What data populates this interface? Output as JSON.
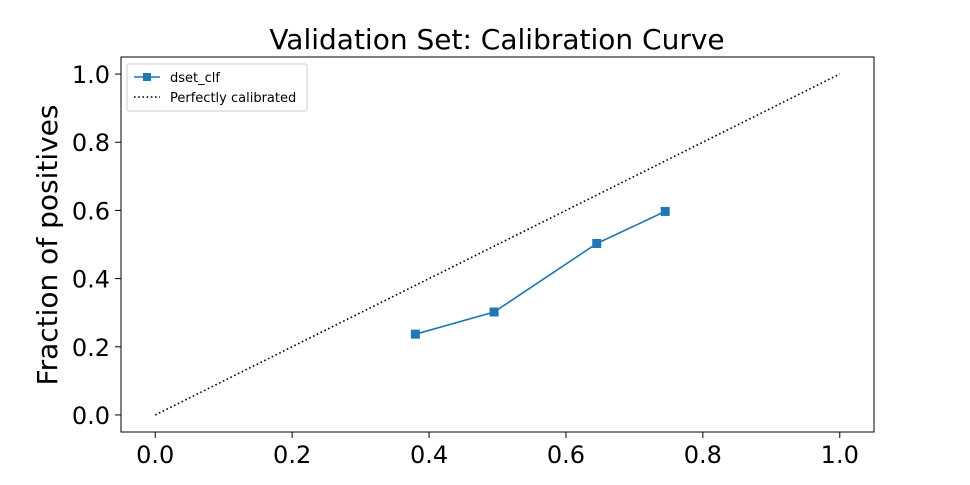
{
  "chart_data": {
    "type": "line",
    "title": "Validation Set: Calibration Curve",
    "xlabel": "",
    "ylabel": "Fraction of positives",
    "xlim": [
      -0.05,
      1.05
    ],
    "ylim": [
      -0.05,
      1.05
    ],
    "xticks": [
      0.0,
      0.2,
      0.4,
      0.6,
      0.8,
      1.0
    ],
    "yticks": [
      0.0,
      0.2,
      0.4,
      0.6,
      0.8,
      1.0
    ],
    "xtick_labels": [
      "0.0",
      "0.2",
      "0.4",
      "0.6",
      "0.8",
      "1.0"
    ],
    "ytick_labels": [
      "0.0",
      "0.2",
      "0.4",
      "0.6",
      "0.8",
      "1.0"
    ],
    "grid": false,
    "legend_position": "top-left",
    "series": [
      {
        "name": "dset_clf",
        "style": "solid-square-markers",
        "color": "#1f77b4",
        "x": [
          0.38,
          0.495,
          0.645,
          0.745
        ],
        "y": [
          0.237,
          0.302,
          0.503,
          0.597
        ]
      },
      {
        "name": "Perfectly calibrated",
        "style": "dotted",
        "color": "#000000",
        "x": [
          0.0,
          1.0
        ],
        "y": [
          0.0,
          1.0
        ]
      }
    ]
  }
}
